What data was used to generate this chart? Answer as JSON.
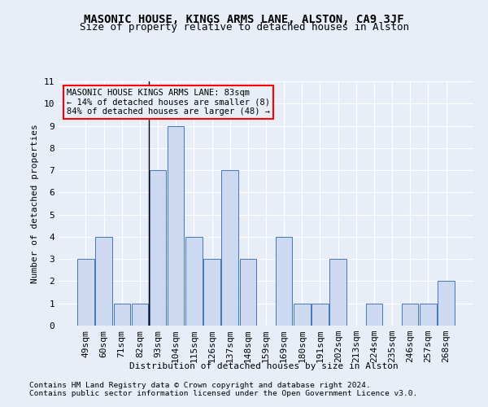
{
  "title1": "MASONIC HOUSE, KINGS ARMS LANE, ALSTON, CA9 3JF",
  "title2": "Size of property relative to detached houses in Alston",
  "xlabel": "Distribution of detached houses by size in Alston",
  "ylabel": "Number of detached properties",
  "footnote1": "Contains HM Land Registry data © Crown copyright and database right 2024.",
  "footnote2": "Contains public sector information licensed under the Open Government Licence v3.0.",
  "categories": [
    "49sqm",
    "60sqm",
    "71sqm",
    "82sqm",
    "93sqm",
    "104sqm",
    "115sqm",
    "126sqm",
    "137sqm",
    "148sqm",
    "159sqm",
    "169sqm",
    "180sqm",
    "191sqm",
    "202sqm",
    "213sqm",
    "224sqm",
    "235sqm",
    "246sqm",
    "257sqm",
    "268sqm"
  ],
  "values": [
    3,
    4,
    1,
    1,
    7,
    9,
    4,
    3,
    7,
    3,
    0,
    4,
    1,
    1,
    3,
    0,
    1,
    0,
    1,
    1,
    2
  ],
  "bar_color": "#ccd9f0",
  "bar_edgecolor": "#4477bb",
  "annotation_text": "MASONIC HOUSE KINGS ARMS LANE: 83sqm\n← 14% of detached houses are smaller (8)\n84% of detached houses are larger (48) →",
  "vline_x": 3.5,
  "ylim": [
    0,
    11
  ],
  "yticks": [
    0,
    1,
    2,
    3,
    4,
    5,
    6,
    7,
    8,
    9,
    10,
    11
  ],
  "background_color": "#e8eef8",
  "grid_color": "#ffffff",
  "title1_fontsize": 10,
  "title2_fontsize": 9,
  "axis_fontsize": 8,
  "tick_fontsize": 8,
  "annot_fontsize": 7.5,
  "footnote_fontsize": 6.8
}
